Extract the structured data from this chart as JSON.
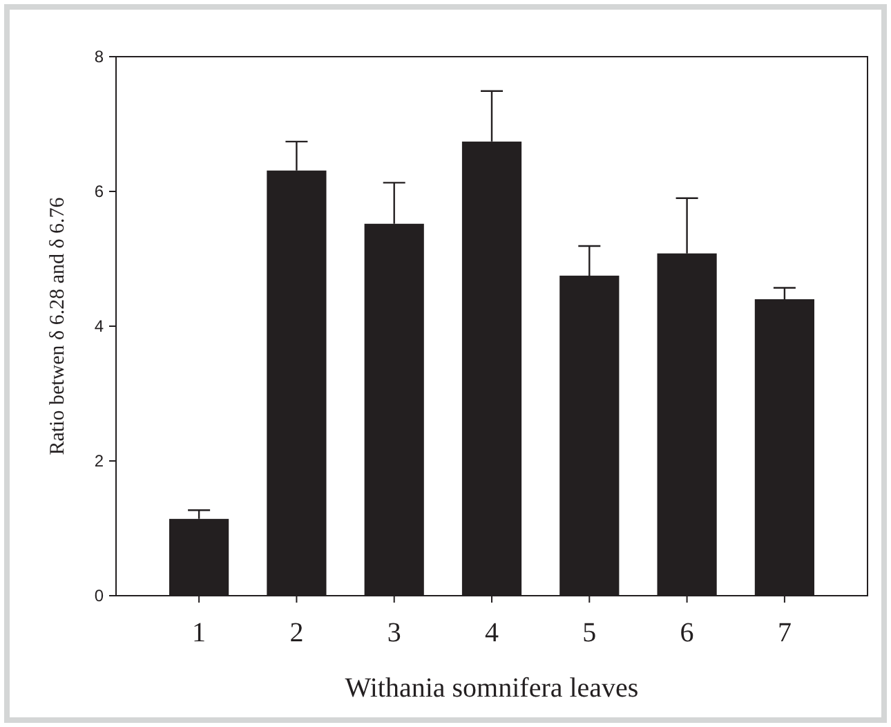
{
  "chart_data": {
    "type": "bar",
    "xlabel": "Withania somnifera leaves",
    "ylabel": "Ratio betwen δ 6.28 and δ 6.76",
    "categories": [
      "1",
      "2",
      "3",
      "4",
      "5",
      "6",
      "7"
    ],
    "values": [
      1.14,
      6.31,
      5.52,
      6.74,
      4.75,
      5.08,
      4.4
    ],
    "errors": [
      [
        1.14,
        1.27
      ],
      [
        6.31,
        6.74
      ],
      [
        5.52,
        6.13
      ],
      [
        6.74,
        7.49
      ],
      [
        4.75,
        5.19
      ],
      [
        5.08,
        5.9
      ],
      [
        4.4,
        4.57
      ]
    ],
    "color": "#231f20",
    "ylim": [
      0,
      8
    ],
    "yticks": [
      0,
      2,
      4,
      6,
      8
    ],
    "grid": false
  }
}
